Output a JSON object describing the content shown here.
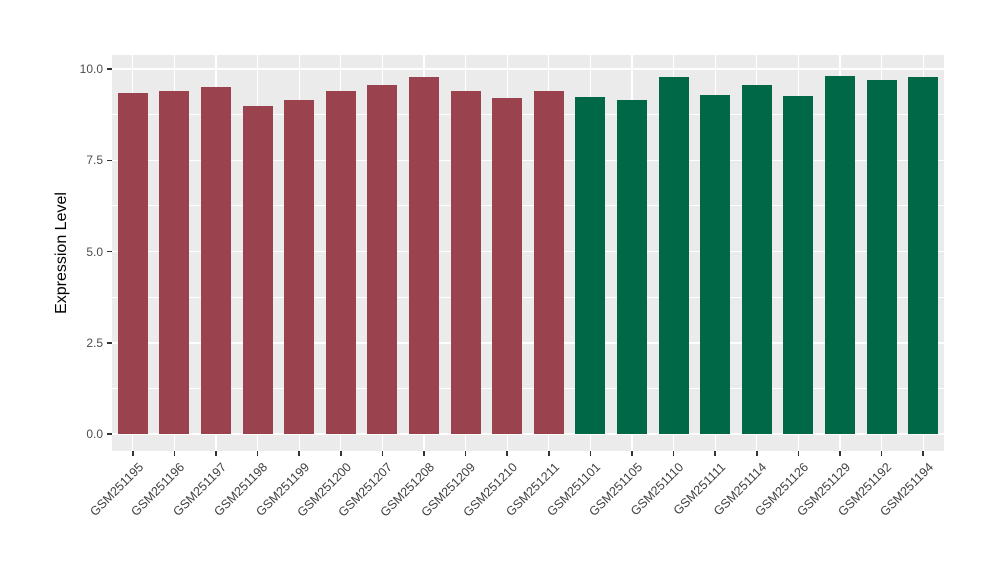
{
  "chart_data": {
    "type": "bar",
    "title": "",
    "xlabel": "",
    "ylabel": "Expression Level",
    "ylim": [
      -0.5,
      10.4
    ],
    "yticks": [
      0.0,
      2.5,
      5.0,
      7.5,
      10.0
    ],
    "ytick_labels": [
      "0.0",
      "2.5",
      "5.0",
      "7.5",
      "10.0"
    ],
    "minor_yticks": [
      1.25,
      3.75,
      6.25,
      8.75
    ],
    "grid": true,
    "legend_position": "none",
    "categories": [
      "GSM251195",
      "GSM251196",
      "GSM251197",
      "GSM251198",
      "GSM251199",
      "GSM251200",
      "GSM251207",
      "GSM251208",
      "GSM251209",
      "GSM251210",
      "GSM251211",
      "GSM251101",
      "GSM251105",
      "GSM251110",
      "GSM251111",
      "GSM251114",
      "GSM251126",
      "GSM251129",
      "GSM251192",
      "GSM251194"
    ],
    "values": [
      9.35,
      9.4,
      9.5,
      9.0,
      9.15,
      9.4,
      9.55,
      9.78,
      9.4,
      9.2,
      9.4,
      9.22,
      9.15,
      9.78,
      9.28,
      9.57,
      9.26,
      9.82,
      9.7,
      9.78
    ],
    "bar_group_index": [
      0,
      0,
      0,
      0,
      0,
      0,
      0,
      0,
      0,
      0,
      0,
      1,
      1,
      1,
      1,
      1,
      1,
      1,
      1,
      1
    ],
    "group_colors": [
      "#9A424E",
      "#006747"
    ]
  },
  "style_colors": {
    "panel_background": "#EBEBEB",
    "gridline": "#FFFFFF",
    "tick_mark": "#333333",
    "tick_text": "#4D4D4D",
    "axis_title_text": "#000000"
  }
}
